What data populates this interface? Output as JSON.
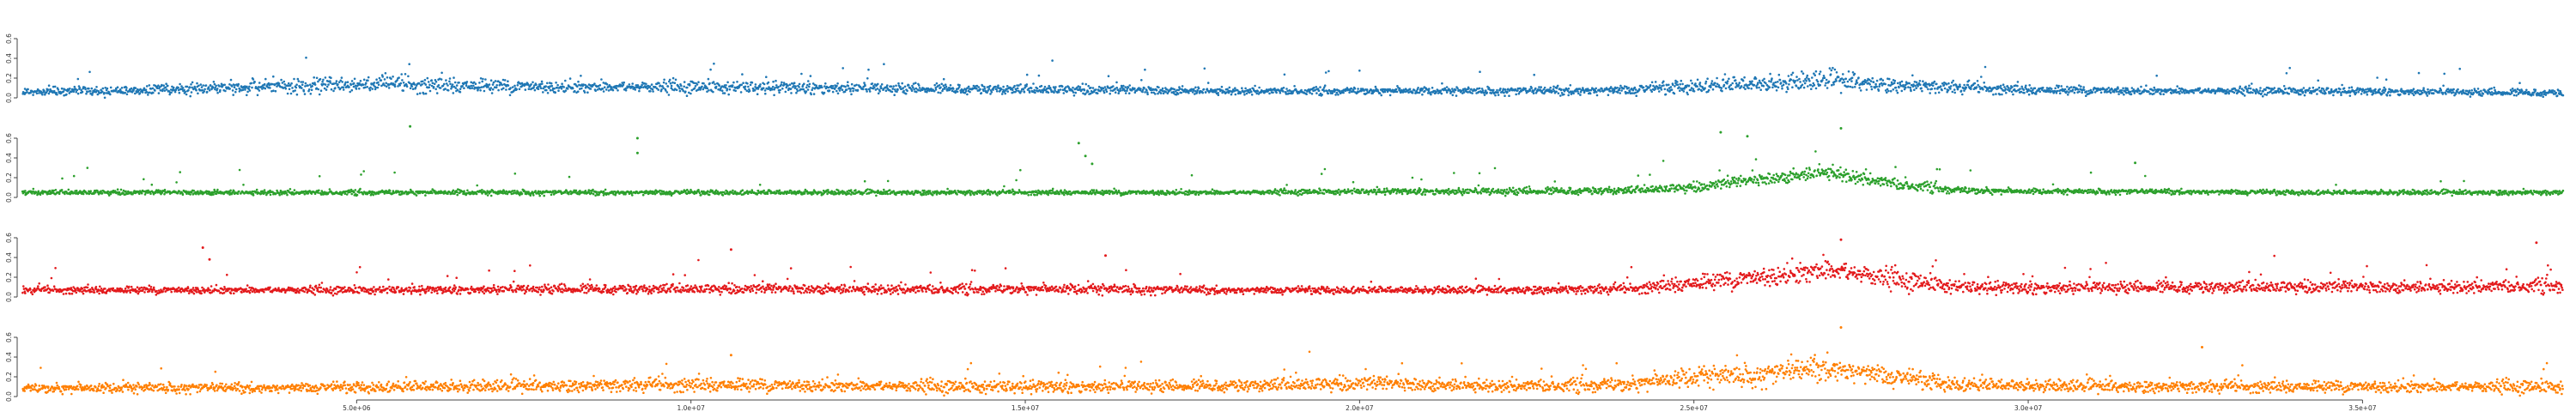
{
  "chart_data": {
    "type": "scatter",
    "title": "",
    "xlabel": "",
    "ylabel": "",
    "x_ticks": [
      {
        "value": 5000000,
        "label": "5.0e+06"
      },
      {
        "value": 10000000,
        "label": "1.0e+07"
      },
      {
        "value": 15000000,
        "label": "1.5e+07"
      },
      {
        "value": 20000000,
        "label": "2.0e+07"
      },
      {
        "value": 25000000,
        "label": "2.5e+07"
      },
      {
        "value": 30000000,
        "label": "3.0e+07"
      },
      {
        "value": 35000000,
        "label": "3.5e+07"
      }
    ],
    "xlim": [
      0,
      38000000
    ],
    "grid": false,
    "legend": "none",
    "panels": [
      {
        "color": "#1f77b4",
        "ylim": [
          0,
          0.8
        ],
        "y_ticks": [
          "0.0",
          "0.2",
          "0.4",
          "0.6"
        ],
        "profile": {
          "x_mb": [
            0,
            2,
            4,
            5,
            6,
            8,
            10,
            12,
            14,
            16,
            18,
            20,
            22,
            24,
            25,
            26,
            27,
            28,
            30,
            32,
            34,
            36,
            38
          ],
          "baseline": [
            0.06,
            0.08,
            0.12,
            0.14,
            0.13,
            0.11,
            0.11,
            0.1,
            0.09,
            0.08,
            0.07,
            0.07,
            0.07,
            0.08,
            0.12,
            0.14,
            0.18,
            0.13,
            0.08,
            0.07,
            0.07,
            0.06,
            0.05
          ],
          "spread": [
            0.03,
            0.04,
            0.06,
            0.07,
            0.07,
            0.05,
            0.05,
            0.05,
            0.04,
            0.04,
            0.03,
            0.03,
            0.03,
            0.04,
            0.06,
            0.07,
            0.08,
            0.06,
            0.04,
            0.03,
            0.03,
            0.03,
            0.03
          ]
        }
      },
      {
        "color": "#2ca02c",
        "ylim": [
          0,
          0.8
        ],
        "y_ticks": [
          "0.0",
          "0.2",
          "0.4",
          "0.6"
        ],
        "profile": {
          "x_mb": [
            0,
            2,
            4,
            6,
            8,
            10,
            12,
            14,
            16,
            18,
            20,
            22,
            24,
            25,
            26,
            27,
            28,
            29,
            30,
            32,
            34,
            36,
            38
          ],
          "baseline": [
            0.05,
            0.05,
            0.05,
            0.05,
            0.05,
            0.05,
            0.05,
            0.05,
            0.05,
            0.05,
            0.06,
            0.06,
            0.07,
            0.1,
            0.18,
            0.26,
            0.14,
            0.07,
            0.06,
            0.06,
            0.05,
            0.05,
            0.05
          ],
          "spread": [
            0.02,
            0.02,
            0.02,
            0.02,
            0.02,
            0.02,
            0.02,
            0.02,
            0.02,
            0.02,
            0.02,
            0.03,
            0.03,
            0.04,
            0.05,
            0.06,
            0.05,
            0.03,
            0.02,
            0.02,
            0.02,
            0.02,
            0.02
          ]
        },
        "outliers": [
          {
            "x": 5800000,
            "y": 0.72
          },
          {
            "x": 9200000,
            "y": 0.6
          },
          {
            "x": 9200000,
            "y": 0.45
          },
          {
            "x": 15800000,
            "y": 0.55
          },
          {
            "x": 15900000,
            "y": 0.42
          },
          {
            "x": 16000000,
            "y": 0.34
          },
          {
            "x": 25800000,
            "y": 0.62
          },
          {
            "x": 25400000,
            "y": 0.66
          },
          {
            "x": 27200000,
            "y": 0.7
          },
          {
            "x": 31600000,
            "y": 0.35
          }
        ]
      },
      {
        "color": "#e31a1c",
        "ylim": [
          0,
          0.8
        ],
        "y_ticks": [
          "0.0",
          "0.2",
          "0.4",
          "0.6"
        ],
        "profile": {
          "x_mb": [
            0,
            2,
            4,
            6,
            8,
            10,
            12,
            14,
            16,
            18,
            20,
            22,
            24,
            25,
            26,
            27,
            28,
            29,
            30,
            32,
            34,
            36,
            38
          ],
          "baseline": [
            0.07,
            0.07,
            0.07,
            0.07,
            0.08,
            0.08,
            0.08,
            0.08,
            0.08,
            0.07,
            0.07,
            0.07,
            0.08,
            0.14,
            0.2,
            0.28,
            0.18,
            0.1,
            0.09,
            0.1,
            0.1,
            0.1,
            0.12
          ],
          "spread": [
            0.03,
            0.03,
            0.03,
            0.03,
            0.04,
            0.04,
            0.04,
            0.04,
            0.04,
            0.03,
            0.03,
            0.03,
            0.04,
            0.07,
            0.08,
            0.1,
            0.08,
            0.05,
            0.05,
            0.05,
            0.05,
            0.05,
            0.06
          ]
        },
        "outliers": [
          {
            "x": 2700000,
            "y": 0.5
          },
          {
            "x": 2800000,
            "y": 0.38
          },
          {
            "x": 10600000,
            "y": 0.48
          },
          {
            "x": 16200000,
            "y": 0.42
          },
          {
            "x": 27200000,
            "y": 0.58
          },
          {
            "x": 37600000,
            "y": 0.55
          }
        ]
      },
      {
        "color": "#ff7f00",
        "ylim": [
          0,
          0.8
        ],
        "y_ticks": [
          "0.0",
          "0.2",
          "0.4",
          "0.6"
        ],
        "profile": {
          "x_mb": [
            0,
            2,
            4,
            6,
            8,
            10,
            12,
            14,
            16,
            18,
            20,
            22,
            24,
            25,
            26,
            27,
            28,
            29,
            30,
            32,
            34,
            36,
            38
          ],
          "baseline": [
            0.08,
            0.09,
            0.09,
            0.1,
            0.11,
            0.12,
            0.11,
            0.1,
            0.1,
            0.11,
            0.13,
            0.11,
            0.12,
            0.2,
            0.22,
            0.3,
            0.2,
            0.12,
            0.11,
            0.1,
            0.1,
            0.1,
            0.1
          ],
          "spread": [
            0.04,
            0.04,
            0.04,
            0.05,
            0.05,
            0.06,
            0.05,
            0.05,
            0.05,
            0.05,
            0.06,
            0.05,
            0.06,
            0.08,
            0.09,
            0.1,
            0.08,
            0.06,
            0.05,
            0.05,
            0.05,
            0.05,
            0.05
          ]
        },
        "outliers": [
          {
            "x": 27200000,
            "y": 0.7
          },
          {
            "x": 10600000,
            "y": 0.42
          },
          {
            "x": 32600000,
            "y": 0.5
          }
        ]
      }
    ]
  }
}
